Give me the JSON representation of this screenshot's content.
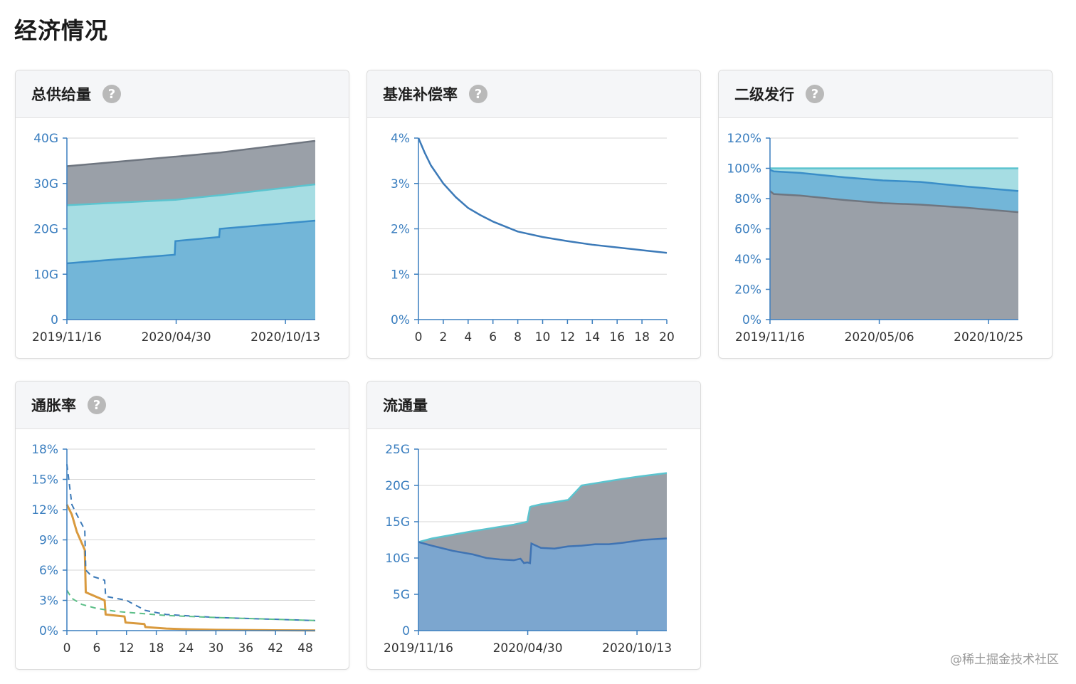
{
  "page": {
    "title": "经济情况",
    "watermark": "@稀土掘金技术社区"
  },
  "help_glyph": "?",
  "colors": {
    "axis": "#3a7ebf",
    "grid": "#d6d6d6",
    "gray_fill": "#9aa0a8",
    "gray_line": "#6f7680",
    "light_fill": "#a6dde3",
    "light_line": "#5bc4cf",
    "blue_fill": "#73b6d8",
    "blue_line": "#3a8ec8",
    "flow_blue_fill": "#7ca6cf",
    "flow_blue_line": "#3f73b3",
    "line_blue": "#3c7ab8",
    "orange": "#d99a3e",
    "green_dash": "#5cbf88",
    "blue_dash": "#3c7ab8"
  },
  "charts": [
    {
      "id": "total-supply",
      "title": "总供给量",
      "has_help": true,
      "chart_data": {
        "type": "area",
        "x_ticks": [
          "2019/11/16",
          "2020/04/30",
          "2020/10/13"
        ],
        "y_ticks": [
          "0",
          "10G",
          "20G",
          "30G",
          "40G"
        ],
        "ylim": [
          0,
          40
        ],
        "x": [
          0,
          165,
          166,
          233,
          234,
          380
        ],
        "series": [
          {
            "values": [
              12.4,
              14.3,
              17.3,
              18.2,
              20.0,
              21.8
            ]
          },
          {
            "values": [
              25.2,
              26.4,
              26.4,
              27.4,
              27.4,
              29.8
            ]
          },
          {
            "values": [
              33.8,
              35.9,
              35.9,
              36.8,
              36.8,
              39.4
            ]
          }
        ]
      }
    },
    {
      "id": "base-reward-rate",
      "title": "基准补偿率",
      "has_help": true,
      "chart_data": {
        "type": "line",
        "x_ticks": [
          "0",
          "2",
          "4",
          "6",
          "8",
          "10",
          "12",
          "14",
          "16",
          "18",
          "20"
        ],
        "y_ticks": [
          "0%",
          "1%",
          "2%",
          "3%",
          "4%"
        ],
        "ylim": [
          0,
          4
        ],
        "xlim": [
          0,
          20
        ],
        "series": [
          {
            "x": [
              0,
              0.5,
              1,
              2,
              3,
              4,
              5,
              6,
              7,
              8,
              10,
              12,
              14,
              16,
              18,
              20
            ],
            "values": [
              4.0,
              3.68,
              3.4,
              3.0,
              2.7,
              2.46,
              2.3,
              2.16,
              2.05,
              1.94,
              1.82,
              1.73,
              1.65,
              1.59,
              1.53,
              1.47
            ]
          }
        ]
      }
    },
    {
      "id": "secondary-issuance",
      "title": "二级发行",
      "has_help": true,
      "chart_data": {
        "type": "area",
        "x_ticks": [
          "2019/11/16",
          "2020/05/06",
          "2020/10/25"
        ],
        "y_ticks": [
          "0%",
          "20%",
          "40%",
          "60%",
          "80%",
          "100%",
          "120%"
        ],
        "ylim": [
          0,
          120
        ],
        "x": [
          0,
          5,
          40,
          100,
          150,
          200,
          260,
          330
        ],
        "series": [
          {
            "values": [
              85,
              83,
              82,
              79,
              77,
              76,
              74,
              71
            ]
          },
          {
            "values": [
              99,
              98,
              97,
              94,
              92,
              91,
              88,
              85
            ]
          },
          {
            "values": [
              100,
              100,
              100,
              100,
              100,
              100,
              100,
              100
            ]
          }
        ]
      }
    },
    {
      "id": "inflation-rate",
      "title": "通胀率",
      "has_help": true,
      "chart_data": {
        "type": "line",
        "x_ticks": [
          "0",
          "6",
          "12",
          "18",
          "24",
          "30",
          "36",
          "42",
          "48"
        ],
        "y_ticks": [
          "0%",
          "3%",
          "6%",
          "9%",
          "12%",
          "15%",
          "18%"
        ],
        "ylim": [
          0,
          18
        ],
        "xlim": [
          0,
          50
        ],
        "series": [
          {
            "style": "solid-orange",
            "x": [
              0,
              1,
              2,
              3.6,
              3.8,
              7.6,
              7.8,
              11.6,
              11.8,
              15.6,
              15.8,
              20,
              25,
              30,
              40,
              50
            ],
            "values": [
              12.5,
              11.5,
              9.8,
              8.0,
              3.8,
              3.0,
              1.6,
              1.4,
              0.8,
              0.65,
              0.35,
              0.2,
              0.12,
              0.08,
              0.04,
              0.02
            ]
          },
          {
            "style": "dashed-blue",
            "x": [
              0,
              1,
              2,
              3.6,
              3.8,
              5,
              7.6,
              7.8,
              12,
              15.8,
              20,
              30,
              40,
              50
            ],
            "values": [
              16.5,
              12.5,
              11.5,
              10.0,
              6.0,
              5.4,
              5.0,
              3.4,
              3.0,
              2.0,
              1.6,
              1.3,
              1.15,
              1.0
            ]
          },
          {
            "style": "dashed-green",
            "x": [
              0,
              1,
              3,
              6,
              10,
              15,
              20,
              30,
              40,
              50
            ],
            "values": [
              4.0,
              3.2,
              2.6,
              2.2,
              1.9,
              1.7,
              1.5,
              1.3,
              1.15,
              1.0
            ]
          }
        ]
      }
    },
    {
      "id": "circulation",
      "title": "流通量",
      "has_help": false,
      "chart_data": {
        "type": "area",
        "x_ticks": [
          "2019/11/16",
          "2020/04/30",
          "2020/10/13"
        ],
        "y_ticks": [
          "0",
          "5G",
          "10G",
          "15G",
          "20G",
          "25G"
        ],
        "ylim": [
          0,
          25
        ],
        "x": [
          0,
          20,
          50,
          80,
          100,
          120,
          140,
          150,
          155,
          160,
          164,
          166,
          180,
          200,
          220,
          240,
          260,
          280,
          300,
          330,
          365
        ],
        "series": [
          {
            "values": [
              12.2,
              11.7,
              11.0,
              10.5,
              10.0,
              9.8,
              9.7,
              9.9,
              9.3,
              9.4,
              9.3,
              12.0,
              11.4,
              11.3,
              11.6,
              11.7,
              11.9,
              11.9,
              12.1,
              12.5,
              12.7
            ]
          },
          {
            "values": [
              12.2,
              12.7,
              13.2,
              13.7,
              14.0,
              14.3,
              14.6,
              14.8,
              14.9,
              15.0,
              17.0,
              17.1,
              17.4,
              17.7,
              18.0,
              20.0,
              20.3,
              20.6,
              20.9,
              21.3,
              21.7
            ]
          }
        ]
      }
    }
  ]
}
